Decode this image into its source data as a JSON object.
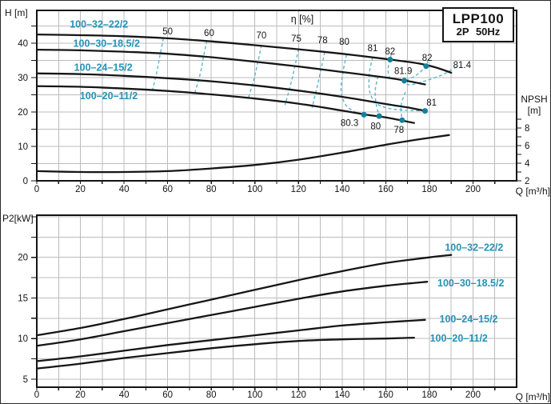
{
  "title_box": {
    "model": "LPP100",
    "spec": "2P 50Hz"
  },
  "colors": {
    "background": "#ffffff",
    "frame": "#141414",
    "grid": "#bcbcbc",
    "curve": "#161616",
    "efficiency_line": "#5cb6cc",
    "efficiency_dot": "#13809e",
    "pump_label": "#2792b5",
    "text": "#141414"
  },
  "chart_data": [
    {
      "type": "line",
      "title": "η [%]",
      "xlabel": "Q [m³/h]",
      "ylabel": "H [m]",
      "x": {
        "min": 0,
        "max": 220,
        "grid_step": 10,
        "tick_step": 10,
        "labels": [
          0,
          20,
          40,
          60,
          80,
          100,
          120,
          140,
          160,
          180,
          200
        ]
      },
      "y": {
        "min": 0,
        "max": 49.5,
        "grid_step": 5,
        "tick_step": 5,
        "labels": [
          0,
          10,
          20,
          30,
          40
        ]
      },
      "y2": {
        "min": 2,
        "max": 9,
        "tick_step": 1,
        "labels": [
          8,
          6,
          4,
          2
        ],
        "title": "NPSH [m]"
      },
      "grid": true,
      "series": [
        {
          "name": "100–32–22/2",
          "axis": "y",
          "points": [
            [
              0,
              42.5
            ],
            [
              20,
              42.3
            ],
            [
              40,
              42.0
            ],
            [
              60,
              41.4
            ],
            [
              80,
              40.5
            ],
            [
              100,
              39.4
            ],
            [
              120,
              38.2
            ],
            [
              140,
              36.9
            ],
            [
              160,
              35.4
            ],
            [
              175,
              34.1
            ],
            [
              183,
              32.9
            ],
            [
              190,
              31.4
            ]
          ]
        },
        {
          "name": "100–30–18.5/2",
          "axis": "y",
          "points": [
            [
              0,
              38.1
            ],
            [
              20,
              37.9
            ],
            [
              40,
              37.5
            ],
            [
              60,
              36.9
            ],
            [
              80,
              35.9
            ],
            [
              100,
              34.6
            ],
            [
              120,
              33.2
            ],
            [
              140,
              31.6
            ],
            [
              160,
              30.0
            ],
            [
              170,
              29.0
            ],
            [
              178,
              28.0
            ]
          ]
        },
        {
          "name": "100–24–15/2",
          "axis": "y",
          "points": [
            [
              0,
              31.2
            ],
            [
              20,
              31.0
            ],
            [
              40,
              30.5
            ],
            [
              60,
              29.8
            ],
            [
              80,
              28.9
            ],
            [
              100,
              27.7
            ],
            [
              120,
              26.2
            ],
            [
              140,
              24.4
            ],
            [
              160,
              22.3
            ],
            [
              170,
              21.3
            ],
            [
              178,
              20.3
            ]
          ]
        },
        {
          "name": "100–20–11/2",
          "axis": "y",
          "points": [
            [
              0,
              27.5
            ],
            [
              20,
              27.3
            ],
            [
              40,
              26.8
            ],
            [
              60,
              26.1
            ],
            [
              80,
              25.1
            ],
            [
              100,
              23.9
            ],
            [
              120,
              22.4
            ],
            [
              140,
              20.4
            ],
            [
              150,
              19.3
            ],
            [
              160,
              18.4
            ],
            [
              173,
              16.8
            ]
          ]
        },
        {
          "name": "NPSH",
          "axis": "y2",
          "points": [
            [
              0,
              3.1
            ],
            [
              20,
              3.0
            ],
            [
              40,
              3.0
            ],
            [
              60,
              3.1
            ],
            [
              80,
              3.4
            ],
            [
              100,
              3.8
            ],
            [
              120,
              4.4
            ],
            [
              140,
              5.2
            ],
            [
              160,
              6.1
            ],
            [
              175,
              6.7
            ],
            [
              189,
              7.2
            ]
          ]
        }
      ],
      "efficiency_contours": [
        {
          "value": "50",
          "points": [
            [
              58,
              41.4
            ],
            [
              56.5,
              36.5
            ],
            [
              55,
              31.5
            ],
            [
              53,
              26.2
            ]
          ]
        },
        {
          "value": "60",
          "points": [
            [
              78,
              40.7
            ],
            [
              76.5,
              36.2
            ],
            [
              75,
              31.2
            ],
            [
              72.5,
              25.6
            ]
          ]
        },
        {
          "value": "70",
          "points": [
            [
              103,
              39.4
            ],
            [
              101.5,
              34.8
            ],
            [
              99.5,
              29.4
            ],
            [
              97,
              24.0
            ]
          ]
        },
        {
          "value": "75",
          "points": [
            [
              120,
              38.3
            ],
            [
              118.5,
              33.8
            ],
            [
              116.5,
              28.2
            ],
            [
              113.8,
              22.0
            ]
          ]
        },
        {
          "value": "78",
          "points": [
            [
              132,
              37.4
            ],
            [
              130.5,
              32.9
            ],
            [
              128.5,
              27.2
            ],
            [
              126.2,
              21.2
            ]
          ]
        },
        {
          "value": "80",
          "points": [
            [
              142,
              36.6
            ],
            [
              140.5,
              31.9
            ],
            [
              139.5,
              26.3
            ],
            [
              141.5,
              22.2
            ],
            [
              145.5,
              20.2
            ],
            [
              150,
              19.2
            ]
          ]
        },
        {
          "value": "80-falling",
          "points": [
            [
              156.5,
              30.4
            ],
            [
              155.2,
              26.3
            ],
            [
              155.6,
              22.3
            ],
            [
              157,
              18.8
            ]
          ]
        },
        {
          "value": "81",
          "points": [
            [
              154,
              35.9
            ],
            [
              152.5,
              31.2
            ],
            [
              152.6,
              26.0
            ],
            [
              155.5,
              22.6
            ],
            [
              161,
              21.1
            ],
            [
              169,
              20.5
            ],
            [
              178,
              20.3
            ]
          ]
        },
        {
          "value": "82",
          "points": [
            [
              162.5,
              36.8
            ],
            [
              162,
              35.2
            ],
            [
              161,
              32.3
            ],
            [
              161.8,
              30.0
            ]
          ]
        },
        {
          "value": "82-falling",
          "points": [
            [
              179.3,
              35.0
            ],
            [
              178.5,
              33.3
            ],
            [
              174,
              30.7
            ],
            [
              170,
              29.4
            ],
            [
              168.5,
              29.1
            ]
          ]
        },
        {
          "value": "81.4",
          "points": [
            [
              192.5,
              33.1
            ],
            [
              186,
              30.8
            ],
            [
              178.5,
              29.1
            ],
            [
              171.5,
              27.9
            ],
            [
              168,
              28.4
            ]
          ]
        },
        {
          "value": "78-falling",
          "points": [
            [
              169,
              25.8
            ],
            [
              167,
              21.8
            ],
            [
              167.5,
              17.6
            ]
          ]
        }
      ],
      "bep_dots": [
        {
          "q": 162,
          "y": 35.2
        },
        {
          "q": 178.5,
          "y": 33.3
        },
        {
          "q": 168.5,
          "y": 29.1
        },
        {
          "q": 178,
          "y": 20.3
        },
        {
          "q": 150,
          "y": 19.2
        },
        {
          "q": 157,
          "y": 18.8
        },
        {
          "q": 167.5,
          "y": 17.6
        }
      ],
      "efficiency_labels": [
        {
          "text": "50",
          "q": 60,
          "y": 43.5
        },
        {
          "text": "60",
          "q": 79,
          "y": 43.0
        },
        {
          "text": "70",
          "q": 103,
          "y": 42.3
        },
        {
          "text": "75",
          "q": 119,
          "y": 41.4
        },
        {
          "text": "78",
          "q": 131,
          "y": 40.9
        },
        {
          "text": "80",
          "q": 141,
          "y": 40.4
        },
        {
          "text": "81",
          "q": 154,
          "y": 38.6
        },
        {
          "text": "82",
          "q": 162,
          "y": 37.7
        },
        {
          "text": "82",
          "q": 179,
          "y": 35.8
        },
        {
          "text": "81.4",
          "q": 195,
          "y": 33.7
        },
        {
          "text": "81.9",
          "q": 168,
          "y": 31.9
        },
        {
          "text": "81",
          "q": 181,
          "y": 22.8
        },
        {
          "text": "80.3",
          "q": 143.4,
          "y": 16.8
        },
        {
          "text": "80",
          "q": 155.4,
          "y": 15.9
        },
        {
          "text": "78",
          "q": 166,
          "y": 14.9
        }
      ],
      "series_labels": [
        {
          "text": "100–32–22/2",
          "q": 28.5,
          "y": 45.4
        },
        {
          "text": "100–30–18.5/2",
          "q": 32,
          "y": 39.8
        },
        {
          "text": "100–24–15/2",
          "q": 30.5,
          "y": 32.9
        },
        {
          "text": "100–20–11/2",
          "q": 33,
          "y": 24.6
        }
      ]
    },
    {
      "type": "line",
      "title": "",
      "xlabel": "Q [m³/h]",
      "ylabel": "P2[kW]",
      "x": {
        "min": 0,
        "max": 220,
        "grid_step": 10,
        "tick_step": 10,
        "labels": [
          0,
          20,
          40,
          60,
          80,
          100,
          120,
          140,
          160,
          180,
          200
        ]
      },
      "y": {
        "min": 4,
        "max": 25.2,
        "grid_step": 2.5,
        "tick_step": 2.5,
        "labels": [
          5,
          10,
          15,
          20
        ]
      },
      "grid": true,
      "series": [
        {
          "name": "100–32–22/2",
          "axis": "y",
          "points": [
            [
              0,
              10.4
            ],
            [
              20,
              11.3
            ],
            [
              40,
              12.4
            ],
            [
              60,
              13.6
            ],
            [
              80,
              14.8
            ],
            [
              100,
              16.0
            ],
            [
              120,
              17.2
            ],
            [
              140,
              18.3
            ],
            [
              160,
              19.3
            ],
            [
              180,
              20.0
            ],
            [
              190,
              20.3
            ]
          ]
        },
        {
          "name": "100–30–18.5/2",
          "axis": "y",
          "points": [
            [
              0,
              9.1
            ],
            [
              20,
              9.9
            ],
            [
              40,
              10.9
            ],
            [
              60,
              11.9
            ],
            [
              80,
              12.9
            ],
            [
              100,
              13.9
            ],
            [
              120,
              14.9
            ],
            [
              140,
              15.8
            ],
            [
              160,
              16.5
            ],
            [
              179,
              17.0
            ]
          ]
        },
        {
          "name": "100–24–15/2",
          "axis": "y",
          "points": [
            [
              0,
              7.2
            ],
            [
              20,
              7.8
            ],
            [
              40,
              8.5
            ],
            [
              60,
              9.2
            ],
            [
              80,
              9.8
            ],
            [
              100,
              10.4
            ],
            [
              120,
              11.0
            ],
            [
              140,
              11.6
            ],
            [
              160,
              12.0
            ],
            [
              178,
              12.3
            ]
          ]
        },
        {
          "name": "100–20–11/2",
          "axis": "y",
          "points": [
            [
              0,
              6.3
            ],
            [
              20,
              6.9
            ],
            [
              40,
              7.6
            ],
            [
              60,
              8.2
            ],
            [
              80,
              8.8
            ],
            [
              100,
              9.3
            ],
            [
              120,
              9.7
            ],
            [
              140,
              9.9
            ],
            [
              160,
              10.0
            ],
            [
              173,
              10.1
            ]
          ]
        }
      ],
      "series_labels": [
        {
          "text": "100–32–22/2",
          "q": 200.5,
          "y": 21.2
        },
        {
          "text": "100–30–18.5/2",
          "q": 199,
          "y": 16.8
        },
        {
          "text": "100–24–15/2",
          "q": 198,
          "y": 12.4
        },
        {
          "text": "100–20–11/2",
          "q": 193.5,
          "y": 10.0
        }
      ]
    }
  ]
}
